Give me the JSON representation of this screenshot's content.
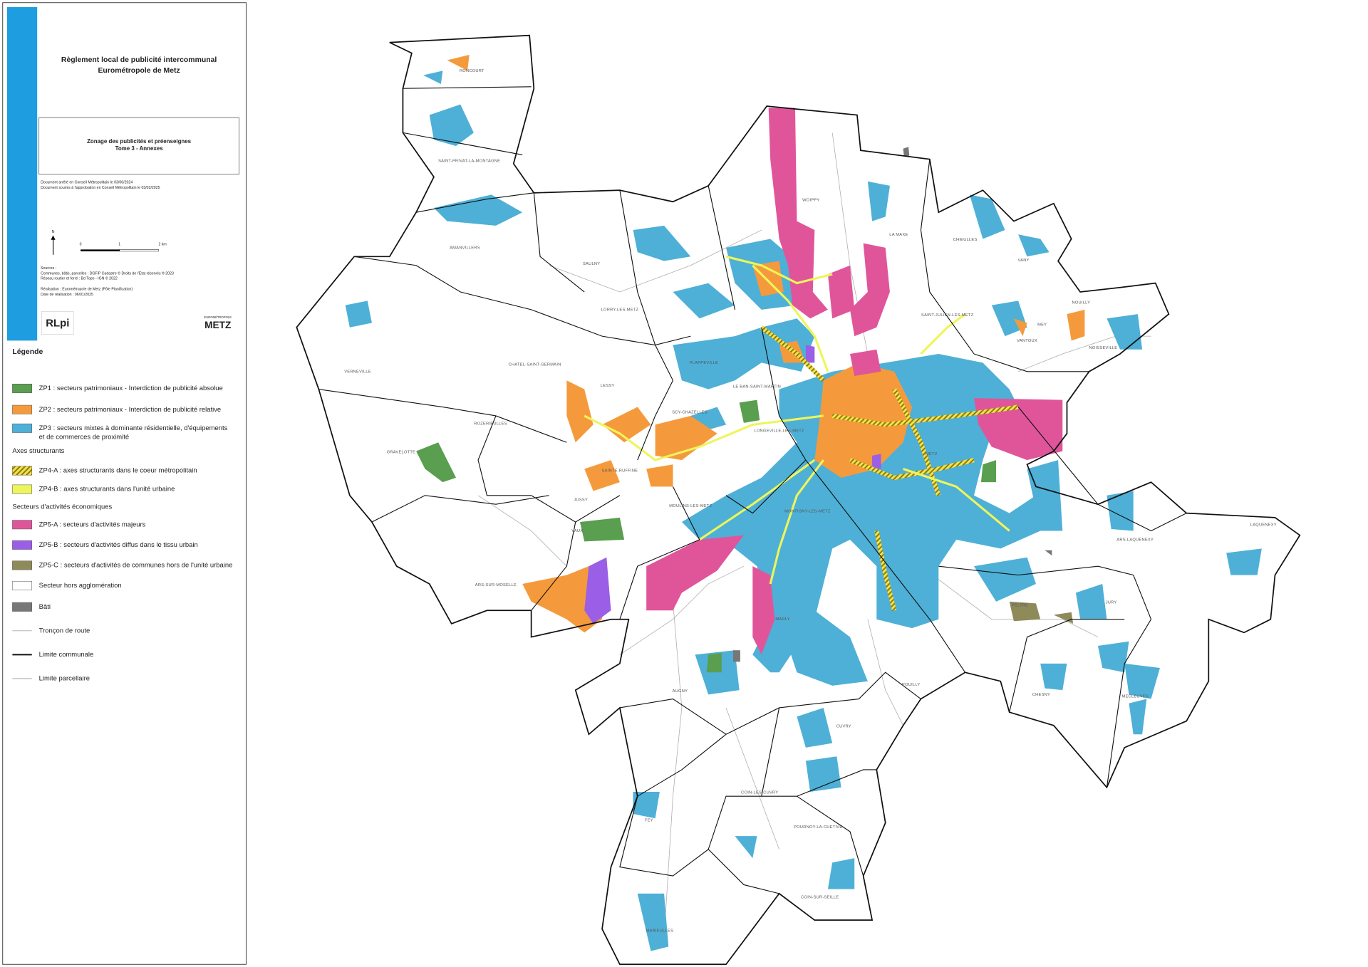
{
  "header": {
    "title": [
      "Règlement local de publicité intercommunal",
      "Eurométropole de Metz"
    ],
    "subtitle": [
      "Zonage des publicités et préenseignes",
      "Tome 3 - Annexes"
    ],
    "notes": [
      "Document arrêté en Conseil Métropolitain le 03/06/2024",
      "Document soumis à l'approbation en Conseil Métropolitain le 03/02/2025"
    ]
  },
  "scale_bar": {
    "north": "N",
    "ticks": [
      "0",
      "1",
      "2 km"
    ]
  },
  "sources": [
    "Sources :",
    "Communes, bâtis, parcelles : DGFiP Cadastre © Droits de l'État réservés ® 2023",
    "Réseau routier et ferré : Bd Topo - IGN © 2022",
    "Réalisation : Eurométropole de Metz (Pôle Planification)",
    "Date de réalisation : 06/01/2025"
  ],
  "logos": {
    "rlpi": "RLpi",
    "metz_caption": "EUROMÉTROPOLE",
    "metz": "METZ"
  },
  "legend": {
    "title": "Légende",
    "items": [
      {
        "label": [
          "ZP1 : secteurs patrimoniaux - Interdiction de publicité absolue"
        ],
        "symbol": "fill",
        "color": "#5a9e4f"
      },
      {
        "label": [
          "ZP2 : secteurs patrimoniaux - Interdiction de publicité relative"
        ],
        "symbol": "fill",
        "color": "#f59a3c"
      },
      {
        "label": [
          "ZP3 : secteurs mixtes à dominante résidentielle, d'équipements",
          "et de commerces de proximité"
        ],
        "symbol": "fill",
        "color": "#4eb0d6"
      },
      {
        "label": [
          "Axes structurants"
        ]
      },
      {
        "label": [
          "ZP4-A : axes structurants dans le coeur métropolitain"
        ],
        "symbol": "hatch",
        "color": "#e8d21a"
      },
      {
        "label": [
          "ZP4-B : axes structurants dans l'unité urbaine"
        ],
        "symbol": "fill",
        "color": "#eef55a"
      },
      {
        "label": [
          "Secteurs d'activités économiques"
        ]
      },
      {
        "label": [
          "ZP5-A : secteurs d'activités majeurs"
        ],
        "symbol": "fill",
        "color": "#e0559a"
      },
      {
        "label": [
          "ZP5-B : secteurs d'activités diffus dans le tissu urbain"
        ],
        "symbol": "fill",
        "color": "#9b5ee6"
      },
      {
        "label": [
          "ZP5-C : secteurs d'activités de communes hors de l'unité urbaine"
        ],
        "symbol": "fill",
        "color": "#8e8a5a"
      },
      {
        "label": [
          "Secteur hors agglomération"
        ],
        "symbol": "fill",
        "color": "#ffffff"
      },
      {
        "label": [
          "Bâti"
        ],
        "symbol": "fill",
        "color": "#777777"
      },
      {
        "label": [
          "Tronçon de route"
        ],
        "symbol": "line",
        "color": "#aaaaaa"
      },
      {
        "label": [
          "Limite communale"
        ],
        "symbol": "line",
        "color": "#111111"
      },
      {
        "label": [
          "Limite parcellaire"
        ],
        "symbol": "line",
        "color": "#999999"
      }
    ]
  },
  "communes": [
    "RONCOURT",
    "SAINT-PRIVAT-LA-MONTAGNE",
    "AMANVILLERS",
    "SAULNY",
    "LORRY-LES-METZ",
    "PLAPPEVILLE",
    "CHATEL-SAINT-GERMAIN",
    "LESSY",
    "VERNEVILLE",
    "ROZERIEULLES",
    "GRAVELOTTE",
    "SCY-CHAZELLES",
    "LE BAN-SAINT-MARTIN",
    "LONGEVILLE-LES-METZ",
    "SAINTE-RUFFINE",
    "JUSSY",
    "VAUX",
    "ARS-SUR-MOSELLE",
    "MOULINS-LES-METZ",
    "MONTIGNY-LES-METZ",
    "METZ",
    "WOIPPY",
    "LA MAXE",
    "CHIEULLES",
    "VANY",
    "SAINT-JULIEN-LES-METZ",
    "NOUILLY",
    "VANTOUX",
    "MEY",
    "NOISSEVILLE",
    "ARS-LAQUENEXY",
    "LAQUENEXY",
    "PELTRE",
    "JURY",
    "MARLY",
    "AUGNY",
    "POUILLY",
    "CHESNY",
    "MECLEUVES",
    "CUVRY",
    "COIN-LES-CUVRY",
    "FEY",
    "POURNOY-LA-CHETIVE",
    "COIN-SUR-SEILLE",
    "MARIEULLES"
  ]
}
